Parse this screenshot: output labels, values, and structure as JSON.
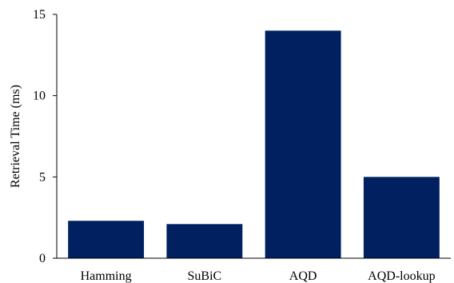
{
  "chart_data": {
    "type": "bar",
    "categories": [
      "Hamming",
      "SuBiC",
      "AQD",
      "AQD-lookup"
    ],
    "values": [
      2.3,
      2.1,
      14.0,
      5.0
    ],
    "title": "",
    "xlabel": "",
    "ylabel": "Retrieval Time (ms)",
    "ylim": [
      0,
      15
    ],
    "yticks": [
      0,
      5,
      10,
      15
    ],
    "grid": false,
    "legend": "none",
    "bar_color": "#002060"
  }
}
